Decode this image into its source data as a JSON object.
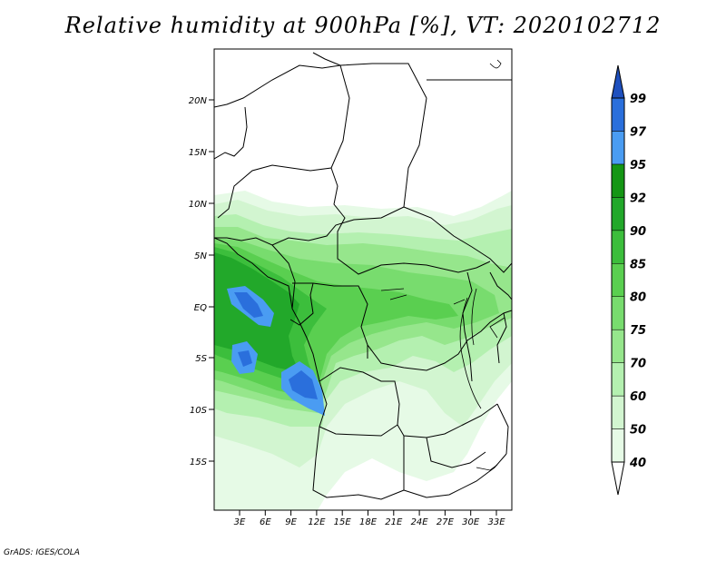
{
  "title": "Relative humidity at 900hPa [%], VT: 2020102712",
  "credit": "GrADS: IGES/COLA",
  "map": {
    "lat_labels": [
      "20N",
      "15N",
      "10N",
      "5N",
      "EQ",
      "5S",
      "10S",
      "15S"
    ],
    "lon_labels": [
      "3E",
      "6E",
      "9E",
      "12E",
      "15E",
      "18E",
      "21E",
      "24E",
      "27E",
      "30E",
      "33E"
    ]
  },
  "colorbar": {
    "levels": [
      "40",
      "50",
      "60",
      "70",
      "75",
      "80",
      "85",
      "90",
      "92",
      "95",
      "97",
      "99"
    ],
    "colors": [
      "#ffffff",
      "#e6fae6",
      "#d2f5d0",
      "#b4f0b0",
      "#96e68c",
      "#78dc6e",
      "#5acf50",
      "#3cbe3c",
      "#22a82a",
      "#149614",
      "#4a9cf2",
      "#2a6fdc",
      "#1e50be"
    ]
  }
}
